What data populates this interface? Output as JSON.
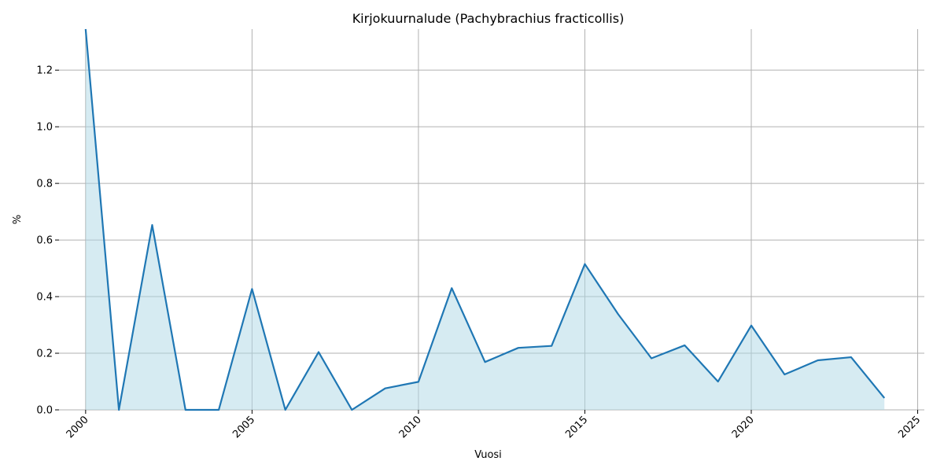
{
  "chart_data": {
    "type": "area",
    "title": "Kirjokuurnalude (Pachybrachius fracticollis)",
    "xlabel": "Vuosi",
    "ylabel": "%",
    "xlim": [
      1999.2,
      2025.2
    ],
    "ylim": [
      0,
      1.345
    ],
    "x_ticks": [
      2000,
      2005,
      2010,
      2015,
      2020,
      2025
    ],
    "y_ticks": [
      0.0,
      0.2,
      0.4,
      0.6,
      0.8,
      1.0,
      1.2
    ],
    "grid": true,
    "line_color": "#1f77b4",
    "fill_color": "#add8e6",
    "series": [
      {
        "x": [
          2000,
          2001,
          2002,
          2003,
          2004,
          2005,
          2006,
          2007,
          2008,
          2009,
          2010,
          2011,
          2012,
          2013,
          2014,
          2015,
          2016,
          2017,
          2018,
          2019,
          2020,
          2021,
          2022,
          2023,
          2024
        ],
        "values": [
          1.345,
          0.0,
          0.653,
          0.0,
          0.0,
          0.427,
          0.0,
          0.204,
          0.0,
          0.076,
          0.099,
          0.43,
          0.169,
          0.219,
          0.226,
          0.515,
          0.338,
          0.182,
          0.228,
          0.1,
          0.298,
          0.125,
          0.175,
          0.186,
          0.042
        ]
      }
    ]
  }
}
